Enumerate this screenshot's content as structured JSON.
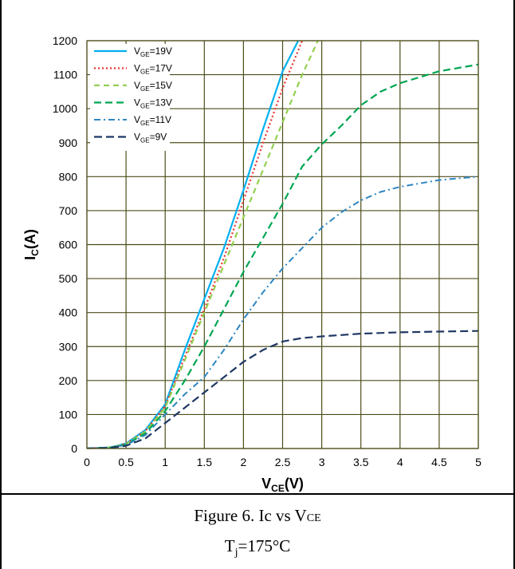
{
  "figure": {
    "caption_prefix": "Figure 6. Ic vs V",
    "caption_sub": "CE",
    "condition_prefix": "T",
    "condition_sub": "j",
    "condition_value": "=175°C"
  },
  "chart_data": {
    "type": "line",
    "xlabel": "V",
    "xlabel_sub": "CE",
    "xlabel_unit": "(V)",
    "ylabel": "I",
    "ylabel_sub": "C",
    "ylabel_unit": "(A)",
    "xlim": [
      0,
      5
    ],
    "ylim": [
      0,
      1200
    ],
    "xticks": [
      0,
      0.5,
      1,
      1.5,
      2,
      2.5,
      3,
      3.5,
      4,
      4.5,
      5
    ],
    "xtick_labels": [
      "0",
      "0.5",
      "1",
      "1.5",
      "2",
      "2.5",
      "3",
      "3.5",
      "4",
      "4.5",
      "5"
    ],
    "yticks": [
      0,
      100,
      200,
      300,
      400,
      500,
      600,
      700,
      800,
      900,
      1000,
      1100,
      1200
    ],
    "ytick_labels": [
      "0",
      "100",
      "200",
      "300",
      "400",
      "500",
      "600",
      "700",
      "800",
      "900",
      "1000",
      "1100",
      "1200"
    ],
    "grid": true,
    "legend_position": "top-left",
    "series": [
      {
        "name": "V_GE=19V",
        "label_main": "V",
        "label_sub": "GE",
        "label_rest": "=19V",
        "color": "#00B0F0",
        "dash": "",
        "width": 2.2,
        "x": [
          0,
          0.3,
          0.5,
          0.75,
          1.0,
          1.25,
          1.5,
          1.75,
          2.0,
          2.25,
          2.5,
          2.7
        ],
        "y": [
          0,
          3,
          15,
          55,
          130,
          290,
          440,
          590,
          760,
          940,
          1110,
          1200
        ]
      },
      {
        "name": "V_GE=17V",
        "label_main": "V",
        "label_sub": "GE",
        "label_rest": "=17V",
        "color": "#E8332D",
        "dash": "2,3",
        "width": 2.2,
        "x": [
          0,
          0.3,
          0.5,
          0.75,
          1.0,
          1.25,
          1.5,
          1.75,
          2.0,
          2.25,
          2.5,
          2.75
        ],
        "y": [
          0,
          3,
          14,
          52,
          125,
          270,
          410,
          560,
          730,
          900,
          1060,
          1200
        ]
      },
      {
        "name": "V_GE=15V",
        "label_main": "V",
        "label_sub": "GE",
        "label_rest": "=15V",
        "color": "#92D050",
        "dash": "7,5",
        "width": 2.2,
        "x": [
          0,
          0.3,
          0.5,
          0.75,
          1.0,
          1.25,
          1.5,
          1.75,
          2.0,
          2.25,
          2.5,
          2.75,
          2.95
        ],
        "y": [
          0,
          3,
          13,
          50,
          120,
          260,
          400,
          540,
          680,
          820,
          960,
          1100,
          1200
        ]
      },
      {
        "name": "V_GE=13V",
        "label_main": "V",
        "label_sub": "GE",
        "label_rest": "=13V",
        "color": "#00A651",
        "dash": "9,5",
        "width": 2.2,
        "x": [
          0,
          0.3,
          0.5,
          0.75,
          1.0,
          1.25,
          1.5,
          1.75,
          2.0,
          2.25,
          2.5,
          2.75,
          3.0,
          3.25,
          3.5,
          3.75,
          4.0,
          4.5,
          5.0
        ],
        "y": [
          0,
          3,
          11,
          45,
          110,
          200,
          300,
          410,
          520,
          620,
          720,
          830,
          895,
          950,
          1010,
          1050,
          1075,
          1110,
          1130
        ]
      },
      {
        "name": "V_GE=11V",
        "label_main": "V",
        "label_sub": "GE",
        "label_rest": "=11V",
        "color": "#2E86C1",
        "dash": "8,4,2,4",
        "width": 2.0,
        "x": [
          0,
          0.3,
          0.5,
          0.75,
          1.0,
          1.25,
          1.5,
          1.75,
          2.0,
          2.25,
          2.5,
          2.75,
          3.0,
          3.25,
          3.5,
          3.75,
          4.0,
          4.5,
          5.0
        ],
        "y": [
          0,
          3,
          10,
          40,
          100,
          160,
          210,
          290,
          380,
          460,
          530,
          590,
          650,
          695,
          730,
          755,
          770,
          790,
          800
        ]
      },
      {
        "name": "V_GE=9V",
        "label_main": "V",
        "label_sub": "GE",
        "label_rest": "=9V",
        "color": "#1F3864",
        "dash": "10,5",
        "width": 2.2,
        "x": [
          0,
          0.3,
          0.5,
          0.75,
          1.0,
          1.25,
          1.5,
          1.75,
          2.0,
          2.25,
          2.5,
          2.75,
          3.0,
          3.5,
          4.0,
          4.5,
          5.0
        ],
        "y": [
          0,
          2,
          8,
          30,
          75,
          120,
          165,
          210,
          255,
          290,
          315,
          325,
          330,
          338,
          342,
          344,
          346
        ]
      }
    ]
  }
}
